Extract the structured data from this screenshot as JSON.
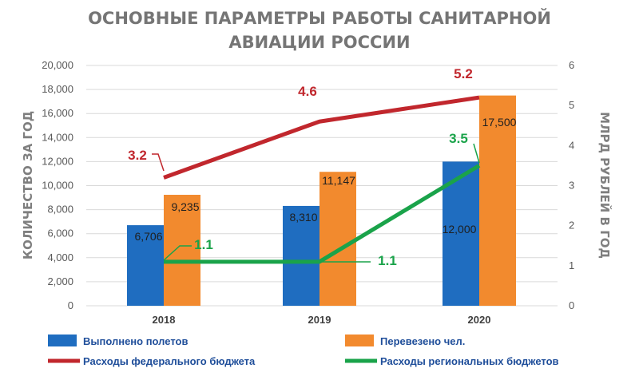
{
  "chart_data": {
    "type": "bar",
    "title_line1": "ОСНОВНЫЕ ПАРАМЕТРЫ РАБОТЫ САНИТАРНОЙ",
    "title_line2": "АВИАЦИИ РОССИИ",
    "categories": [
      "2018",
      "2019",
      "2020"
    ],
    "ylabel": "КОЛИЧЕСТВО ЗА ГОД",
    "y2label": "МЛРД РУБЛЕЙ В ГОД",
    "ylim": [
      0,
      20000
    ],
    "y2lim": [
      0,
      6
    ],
    "yticks": [
      "0",
      "2,000",
      "4,000",
      "6,000",
      "8,000",
      "10,000",
      "12,000",
      "14,000",
      "16,000",
      "18,000",
      "20,000"
    ],
    "y2ticks": [
      "0",
      "1",
      "2",
      "3",
      "4",
      "5",
      "6"
    ],
    "grid": true,
    "legend_position": "bottom",
    "bar_series": [
      {
        "name": "Выполнено полетов",
        "color": "#1f6dc0",
        "values": [
          6706,
          8310,
          12000
        ],
        "labels": [
          "6,706",
          "8,310",
          "12,000"
        ]
      },
      {
        "name": "Перевезено чел.",
        "color": "#f28a2e",
        "values": [
          9235,
          11147,
          17500
        ],
        "labels": [
          "9,235",
          "11,147",
          "17,500"
        ]
      }
    ],
    "line_series": [
      {
        "name": "Расходы федерального бюджета",
        "color": "#c1272d",
        "axis": "right",
        "values": [
          3.2,
          4.6,
          5.2
        ],
        "labels": [
          "3.2",
          "4.6",
          "5.2"
        ]
      },
      {
        "name": "Расходы региональных бюджетов",
        "color": "#1aa34a",
        "axis": "right",
        "values": [
          1.1,
          1.1,
          3.5
        ],
        "labels": [
          "1.1",
          "1.1",
          "3.5"
        ]
      }
    ]
  }
}
